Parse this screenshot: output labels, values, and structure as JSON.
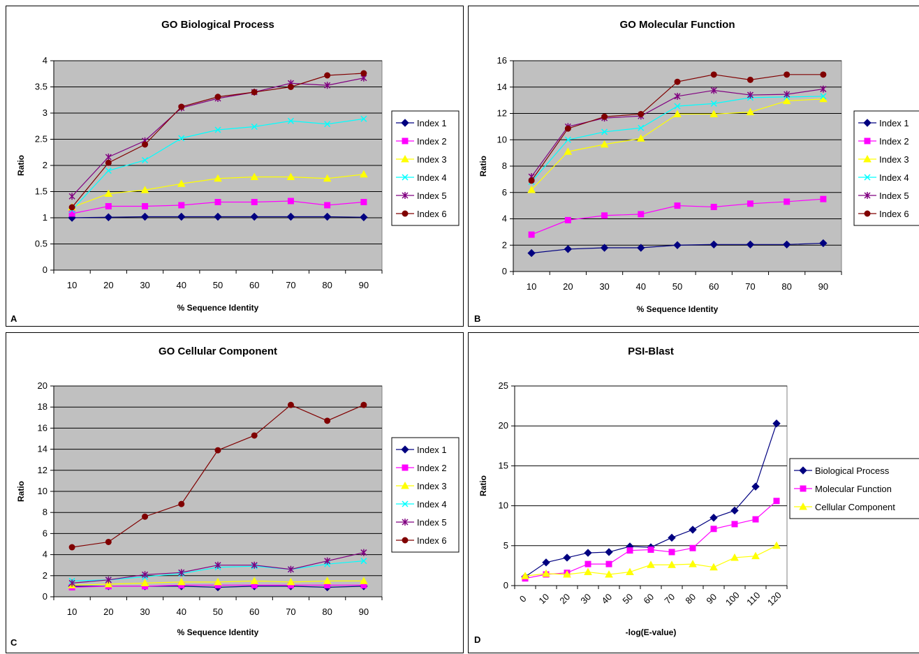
{
  "panels": [
    {
      "letter": "A"
    },
    {
      "letter": "B"
    },
    {
      "letter": "C"
    },
    {
      "letter": "D"
    }
  ],
  "chart_data": [
    {
      "type": "line",
      "title": "GO Biological Process",
      "xlabel": "% Sequence Identity",
      "ylabel": "Ratio",
      "categories": [
        "10",
        "20",
        "30",
        "40",
        "50",
        "60",
        "70",
        "80",
        "90"
      ],
      "ylim": [
        0,
        4
      ],
      "yticks": [
        "0",
        "0.5",
        "1",
        "1.5",
        "2",
        "2.5",
        "3",
        "3.5",
        "4"
      ],
      "ytick_values": [
        0,
        0.5,
        1,
        1.5,
        2,
        2.5,
        3,
        3.5,
        4
      ],
      "grid": true,
      "legend_position": "right",
      "plot_background": "#c0c0c0",
      "series": [
        {
          "name": "Index 1",
          "color": "#000080",
          "marker": "diamond",
          "values": [
            1.0,
            1.01,
            1.02,
            1.02,
            1.02,
            1.02,
            1.02,
            1.02,
            1.01
          ]
        },
        {
          "name": "Index 2",
          "color": "#ff00ff",
          "marker": "square",
          "values": [
            1.08,
            1.22,
            1.22,
            1.24,
            1.3,
            1.3,
            1.32,
            1.24,
            1.3
          ]
        },
        {
          "name": "Index 3",
          "color": "#ffff00",
          "marker": "triangle",
          "values": [
            1.2,
            1.46,
            1.53,
            1.65,
            1.75,
            1.78,
            1.78,
            1.75,
            1.83
          ]
        },
        {
          "name": "Index 4",
          "color": "#00ffff",
          "marker": "x",
          "values": [
            1.15,
            1.9,
            2.1,
            2.52,
            2.68,
            2.74,
            2.85,
            2.79,
            2.89
          ]
        },
        {
          "name": "Index 5",
          "color": "#800080",
          "marker": "star",
          "values": [
            1.41,
            2.16,
            2.47,
            3.1,
            3.28,
            3.4,
            3.57,
            3.53,
            3.67
          ]
        },
        {
          "name": "Index 6",
          "color": "#800000",
          "marker": "circle",
          "values": [
            1.2,
            2.05,
            2.4,
            3.12,
            3.31,
            3.4,
            3.5,
            3.72,
            3.76
          ]
        }
      ]
    },
    {
      "type": "line",
      "title": "GO Molecular Function",
      "xlabel": "% Sequence Identity",
      "ylabel": "Ratio",
      "categories": [
        "10",
        "20",
        "30",
        "40",
        "50",
        "60",
        "70",
        "80",
        "90"
      ],
      "ylim": [
        0,
        16
      ],
      "yticks": [
        "0",
        "2",
        "4",
        "6",
        "8",
        "10",
        "12",
        "14",
        "16"
      ],
      "ytick_values": [
        0,
        2,
        4,
        6,
        8,
        10,
        12,
        14,
        16
      ],
      "grid": true,
      "legend_position": "right",
      "plot_background": "#c0c0c0",
      "series": [
        {
          "name": "Index 1",
          "color": "#000080",
          "marker": "diamond",
          "values": [
            1.4,
            1.7,
            1.8,
            1.8,
            2.0,
            2.05,
            2.05,
            2.05,
            2.15
          ]
        },
        {
          "name": "Index 2",
          "color": "#ff00ff",
          "marker": "square",
          "values": [
            2.8,
            3.9,
            4.25,
            4.35,
            5.0,
            4.9,
            5.15,
            5.3,
            5.5
          ]
        },
        {
          "name": "Index 3",
          "color": "#ffff00",
          "marker": "triangle",
          "values": [
            6.2,
            9.1,
            9.65,
            10.1,
            11.95,
            11.95,
            12.1,
            12.95,
            13.1
          ]
        },
        {
          "name": "Index 4",
          "color": "#00ffff",
          "marker": "x",
          "values": [
            6.8,
            10.0,
            10.6,
            10.9,
            12.55,
            12.75,
            13.2,
            13.25,
            13.3
          ]
        },
        {
          "name": "Index 5",
          "color": "#800080",
          "marker": "star",
          "values": [
            7.2,
            11.0,
            11.65,
            11.8,
            13.3,
            13.75,
            13.4,
            13.45,
            13.85
          ]
        },
        {
          "name": "Index 6",
          "color": "#800000",
          "marker": "circle",
          "values": [
            6.9,
            10.85,
            11.75,
            11.95,
            14.4,
            14.95,
            14.55,
            14.95,
            14.95
          ]
        }
      ]
    },
    {
      "type": "line",
      "title": "GO Cellular Component",
      "xlabel": "% Sequence Identity",
      "ylabel": "Ratio",
      "categories": [
        "10",
        "20",
        "30",
        "40",
        "50",
        "60",
        "70",
        "80",
        "90"
      ],
      "ylim": [
        0,
        20
      ],
      "yticks": [
        "0",
        "2",
        "4",
        "6",
        "8",
        "10",
        "12",
        "14",
        "16",
        "18",
        "20"
      ],
      "ytick_values": [
        0,
        2,
        4,
        6,
        8,
        10,
        12,
        14,
        16,
        18,
        20
      ],
      "grid": true,
      "legend_position": "right",
      "plot_background": "#c0c0c0",
      "series": [
        {
          "name": "Index 1",
          "color": "#000080",
          "marker": "diamond",
          "values": [
            1.0,
            1.0,
            1.0,
            1.0,
            0.9,
            1.0,
            1.0,
            0.9,
            1.0
          ]
        },
        {
          "name": "Index 2",
          "color": "#ff00ff",
          "marker": "square",
          "values": [
            0.9,
            1.0,
            1.0,
            1.1,
            1.1,
            1.1,
            1.1,
            1.1,
            1.1
          ]
        },
        {
          "name": "Index 3",
          "color": "#ffff00",
          "marker": "triangle",
          "values": [
            1.1,
            1.2,
            1.3,
            1.4,
            1.4,
            1.5,
            1.4,
            1.5,
            1.5
          ]
        },
        {
          "name": "Index 4",
          "color": "#00ffff",
          "marker": "x",
          "values": [
            1.5,
            1.6,
            1.9,
            2.2,
            2.8,
            2.9,
            2.6,
            3.1,
            3.4
          ]
        },
        {
          "name": "Index 5",
          "color": "#800080",
          "marker": "star",
          "values": [
            1.3,
            1.6,
            2.1,
            2.3,
            3.0,
            3.0,
            2.6,
            3.4,
            4.2
          ]
        },
        {
          "name": "Index 6",
          "color": "#800000",
          "marker": "circle",
          "values": [
            4.7,
            5.2,
            7.6,
            8.8,
            13.9,
            15.3,
            18.2,
            16.7,
            18.2
          ]
        }
      ]
    },
    {
      "type": "line",
      "title": "PSI-Blast",
      "xlabel": "-log(E-value)",
      "ylabel": "Ratio",
      "categories": [
        "0",
        "10",
        "20",
        "30",
        "40",
        "50",
        "60",
        "70",
        "80",
        "90",
        "100",
        "110",
        "120"
      ],
      "ylim": [
        0,
        25
      ],
      "yticks": [
        "0",
        "5",
        "10",
        "15",
        "20",
        "25"
      ],
      "ytick_values": [
        0,
        5,
        10,
        15,
        20,
        25
      ],
      "grid": true,
      "legend_position": "right",
      "plot_background": "#ffffff",
      "series": [
        {
          "name": "Biological Process",
          "color": "#000080",
          "marker": "diamond",
          "values": [
            1.1,
            2.9,
            3.5,
            4.1,
            4.2,
            4.9,
            4.8,
            6.0,
            7.0,
            8.5,
            9.4,
            12.4,
            20.3
          ]
        },
        {
          "name": "Molecular Function",
          "color": "#ff00ff",
          "marker": "square",
          "values": [
            0.9,
            1.4,
            1.6,
            2.7,
            2.7,
            4.4,
            4.5,
            4.2,
            4.7,
            7.1,
            7.7,
            8.3,
            10.6
          ]
        },
        {
          "name": "Cellular Component",
          "color": "#ffff00",
          "marker": "triangle",
          "values": [
            1.2,
            1.5,
            1.4,
            1.7,
            1.4,
            1.7,
            2.6,
            2.6,
            2.7,
            2.3,
            3.5,
            3.7,
            5.0
          ]
        }
      ]
    }
  ]
}
